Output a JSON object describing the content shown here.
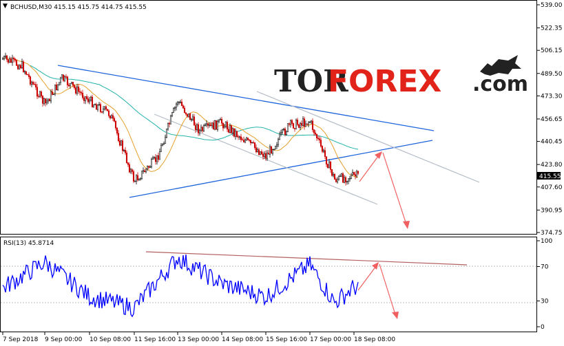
{
  "header": {
    "symbol_line": "BCHUSD,M30  415.15 415.75 414.75 415.55",
    "rsi_line": "RSI(13) 45.8714"
  },
  "logo": {
    "part1": "TOR",
    "part2": "FOREX",
    "part3": ".com"
  },
  "price_axis": {
    "ticks": [
      "539.00",
      "522.35",
      "506.15",
      "489.50",
      "473.30",
      "456.65",
      "440.45",
      "423.80",
      "407.60",
      "390.95",
      "374.75"
    ],
    "current_price": "415.55"
  },
  "rsi_axis": {
    "ticks": [
      "100",
      "70",
      "30",
      "0"
    ]
  },
  "time_axis": {
    "labels": [
      "7 Sep 2018",
      "9 Sep 00:00",
      "10 Sep 08:00",
      "11 Sep 16:00",
      "13 Sep 00:00",
      "14 Sep 08:00",
      "15 Sep 16:00",
      "17 Sep 00:00",
      "18 Sep 08:00"
    ]
  },
  "colors": {
    "bull_candle": "#000000",
    "bear_candle": "#cc0000",
    "trendline": "#1e64dc",
    "channel": "#b4bcc8",
    "ma_fast": "#e6a02a",
    "ma_slow": "#20b2aa",
    "rsi_line": "#0000ff",
    "rsi_trend": "#b46060",
    "forecast_arrow": "#f06060",
    "price_tag": "#000000"
  },
  "chart_data": {
    "type": "candlestick",
    "symbol": "BCHUSD",
    "timeframe": "M30",
    "last_ohlc": {
      "open": 415.15,
      "high": 415.75,
      "low": 414.75,
      "close": 415.55
    },
    "price_range": [
      374.75,
      539.0
    ],
    "close_path": [
      {
        "x": "7 Sep 2018",
        "y": 500
      },
      {
        "x": "8 Sep",
        "y": 495
      },
      {
        "x": "9 Sep 00:00",
        "y": 467
      },
      {
        "x": "9 Sep 08:00",
        "y": 486
      },
      {
        "x": "10 Sep 08:00",
        "y": 470
      },
      {
        "x": "11 Sep 00:00",
        "y": 460
      },
      {
        "x": "11 Sep 16:00",
        "y": 412
      },
      {
        "x": "12 Sep 08:00",
        "y": 428
      },
      {
        "x": "13 Sep 00:00",
        "y": 470
      },
      {
        "x": "13 Sep 12:00",
        "y": 448
      },
      {
        "x": "14 Sep 08:00",
        "y": 454
      },
      {
        "x": "15 Sep 16:00",
        "y": 430
      },
      {
        "x": "16 Sep 08:00",
        "y": 452
      },
      {
        "x": "17 Sep 00:00",
        "y": 455
      },
      {
        "x": "17 Sep 12:00",
        "y": 413
      },
      {
        "x": "18 Sep 08:00",
        "y": 415.55
      }
    ],
    "rsi_period": 13,
    "rsi_last": 45.8714,
    "rsi_range": [
      0,
      100
    ],
    "rsi_levels": [
      70,
      30
    ],
    "rsi_path": [
      {
        "x": "7 Sep 2018",
        "y": 45
      },
      {
        "x": "9 Sep 00:00",
        "y": 75
      },
      {
        "x": "10 Sep 08:00",
        "y": 35
      },
      {
        "x": "11 Sep 16:00",
        "y": 22
      },
      {
        "x": "13 Sep 00:00",
        "y": 80
      },
      {
        "x": "14 Sep 08:00",
        "y": 50
      },
      {
        "x": "15 Sep 16:00",
        "y": 35
      },
      {
        "x": "17 Sep 00:00",
        "y": 72
      },
      {
        "x": "17 Sep 12:00",
        "y": 28
      },
      {
        "x": "18 Sep 08:00",
        "y": 45.87
      }
    ]
  }
}
